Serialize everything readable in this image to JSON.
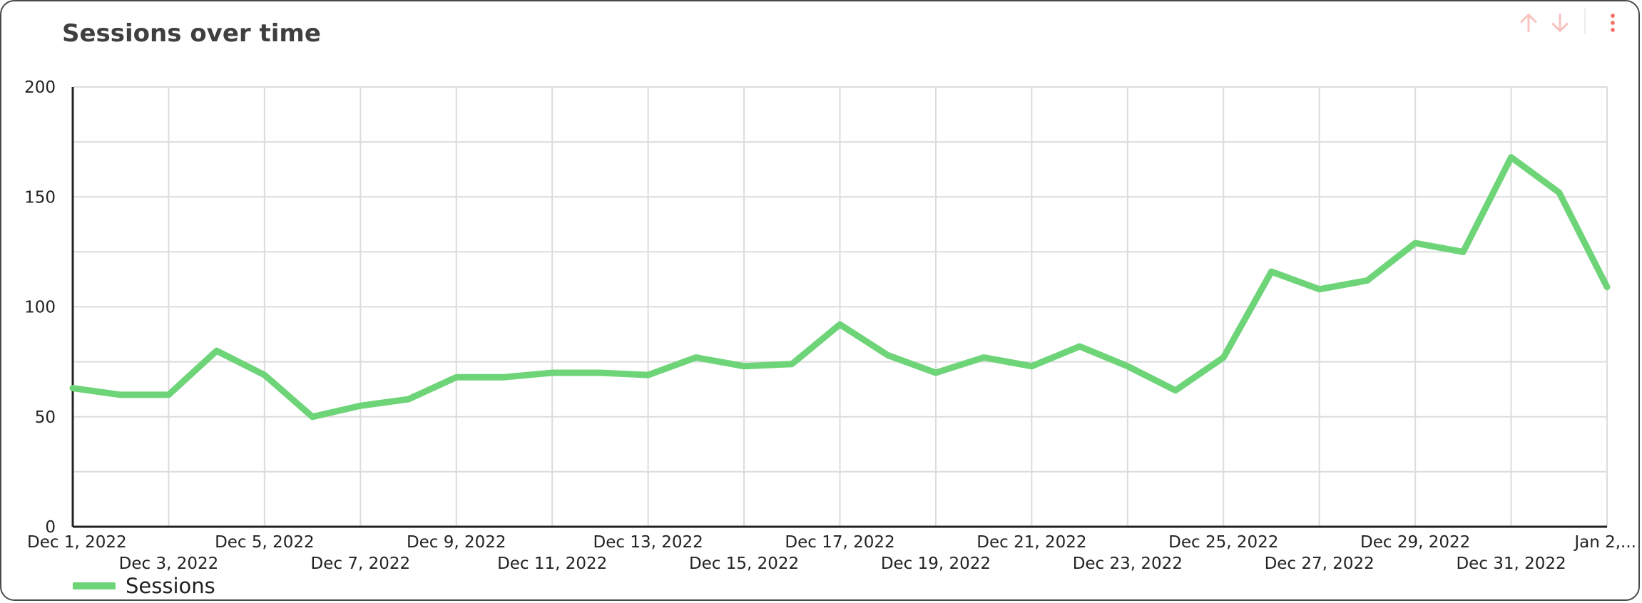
{
  "card": {
    "title": "Sessions over time"
  },
  "toolbar": {
    "icons": [
      "arrow-up-icon",
      "arrow-down-icon",
      "more-vert-icon"
    ],
    "colors": {
      "sort_arrows": "#f7c4c0",
      "more": "#f26d63"
    }
  },
  "legend": {
    "label": "Sessions"
  },
  "chart_data": {
    "type": "line",
    "title": "Sessions over time",
    "xlabel": "",
    "ylabel": "",
    "x": [
      "Dec 1, 2022",
      "Dec 2, 2022",
      "Dec 3, 2022",
      "Dec 4, 2022",
      "Dec 5, 2022",
      "Dec 6, 2022",
      "Dec 7, 2022",
      "Dec 8, 2022",
      "Dec 9, 2022",
      "Dec 10, 2022",
      "Dec 11, 2022",
      "Dec 12, 2022",
      "Dec 13, 2022",
      "Dec 14, 2022",
      "Dec 15, 2022",
      "Dec 16, 2022",
      "Dec 17, 2022",
      "Dec 18, 2022",
      "Dec 19, 2022",
      "Dec 20, 2022",
      "Dec 21, 2022",
      "Dec 22, 2022",
      "Dec 23, 2022",
      "Dec 24, 2022",
      "Dec 25, 2022",
      "Dec 26, 2022",
      "Dec 27, 2022",
      "Dec 28, 2022",
      "Dec 29, 2022",
      "Dec 30, 2022",
      "Dec 31, 2022",
      "Jan 1, 2023",
      "Jan 2, 2023"
    ],
    "tick_labels_row1": [
      "Dec 1, 2022",
      "Dec 5, 2022",
      "Dec 9, 2022",
      "Dec 13, 2022",
      "Dec 17, 2022",
      "Dec 21, 2022",
      "Dec 25, 2022",
      "Dec 29, 2022",
      "Jan 2,..."
    ],
    "tick_labels_row2": [
      "Dec 3, 2022",
      "Dec 7, 2022",
      "Dec 11, 2022",
      "Dec 15, 2022",
      "Dec 19, 2022",
      "Dec 23, 2022",
      "Dec 27, 2022",
      "Dec 31, 2022"
    ],
    "series": [
      {
        "name": "Sessions",
        "color": "#6ed478",
        "values": [
          63,
          60,
          60,
          80,
          69,
          50,
          55,
          58,
          68,
          68,
          70,
          70,
          69,
          77,
          73,
          74,
          92,
          78,
          70,
          77,
          73,
          82,
          73,
          62,
          77,
          116,
          108,
          112,
          129,
          125,
          168,
          152,
          109
        ]
      }
    ],
    "ylim": [
      0,
      200
    ],
    "yticks": [
      0,
      50,
      100,
      150,
      200
    ],
    "grid": true,
    "legend_position": "bottom-left"
  }
}
